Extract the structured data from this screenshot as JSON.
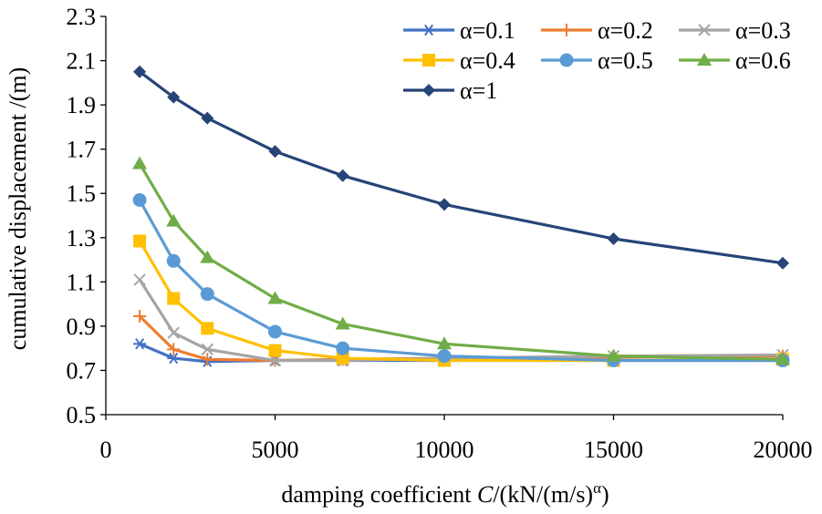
{
  "chart_data": {
    "type": "line",
    "title": "",
    "xlabel": {
      "prefix": "damping coefficient ",
      "var": "C",
      "mid": "/(kN/(m/s)",
      "sup": "α",
      "suffix": ")"
    },
    "ylabel": "cumulative displacement /(m)",
    "xlim": [
      0,
      20000
    ],
    "ylim": [
      0.5,
      2.3
    ],
    "xticks": [
      0,
      5000,
      10000,
      15000,
      20000
    ],
    "xtick_labels": [
      "0",
      "5000",
      "10000",
      "15000",
      "20000"
    ],
    "yticks": [
      0.5,
      0.7,
      0.9,
      1.1,
      1.3,
      1.5,
      1.7,
      1.9,
      2.1,
      2.3
    ],
    "ytick_labels": [
      "0.5",
      "0.7",
      "0.9",
      "1.1",
      "1.3",
      "1.5",
      "1.7",
      "1.9",
      "2.1",
      "2.3"
    ],
    "grid": false,
    "legend": "top-right",
    "x": [
      1000,
      2000,
      3000,
      5000,
      7000,
      10000,
      15000,
      20000
    ],
    "series": [
      {
        "name": "α=0.1",
        "color": "#4472C4",
        "marker": "asterisk",
        "values": [
          0.82,
          0.755,
          0.74,
          0.745,
          0.745,
          0.745,
          0.745,
          0.745
        ]
      },
      {
        "name": "α=0.2",
        "color": "#ED7D31",
        "marker": "plus",
        "values": [
          0.945,
          0.795,
          0.75,
          0.745,
          0.75,
          0.755,
          0.76,
          0.765
        ]
      },
      {
        "name": "α=0.3",
        "color": "#A5A5A5",
        "marker": "cross",
        "values": [
          1.11,
          0.87,
          0.795,
          0.745,
          0.745,
          0.755,
          0.765,
          0.77
        ]
      },
      {
        "name": "α=0.4",
        "color": "#FFC000",
        "marker": "square",
        "values": [
          1.285,
          1.025,
          0.89,
          0.79,
          0.755,
          0.745,
          0.745,
          0.75
        ]
      },
      {
        "name": "α=0.5",
        "color": "#5B9BD5",
        "marker": "circle",
        "values": [
          1.47,
          1.195,
          1.045,
          0.875,
          0.8,
          0.765,
          0.745,
          0.745
        ]
      },
      {
        "name": "α=0.6",
        "color": "#70AD47",
        "marker": "triangle",
        "values": [
          1.635,
          1.375,
          1.21,
          1.025,
          0.91,
          0.82,
          0.765,
          0.75
        ]
      },
      {
        "name": "α=1",
        "color": "#264478",
        "marker": "diamond",
        "values": [
          2.05,
          1.935,
          1.84,
          1.69,
          1.58,
          1.45,
          1.295,
          1.185
        ]
      }
    ]
  }
}
